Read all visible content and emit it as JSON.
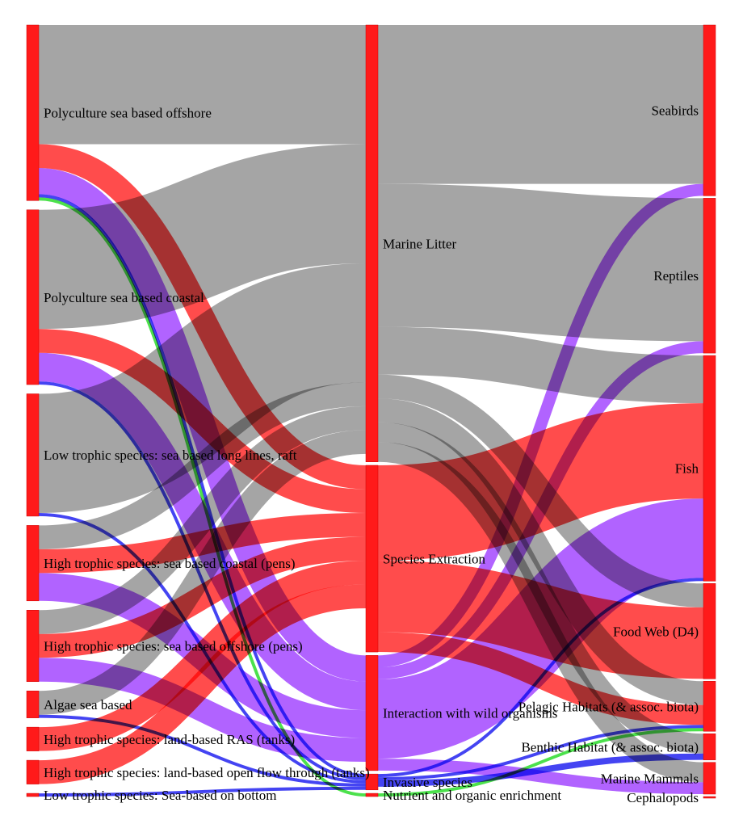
{
  "colors": {
    "node": "#ff1a1a",
    "node_stroke": "#cc0000",
    "marine_litter": "#999999",
    "species_extraction": "#ff3333",
    "interaction": "#a64dff",
    "invasive": "#2a2af0",
    "nutrient": "#33dd33"
  },
  "chart_data": {
    "type": "sankey",
    "columns": [
      [
        "Polyculture sea based offshore",
        "Polyculture sea based coastal",
        "Low trophic species: sea based long lines, raft",
        "High trophic species: sea based coastal (pens)",
        "High trophic species: sea based offshore (pens)",
        "Algae sea based",
        "High trophic species: land-based RAS (tanks)",
        "High trophic species: land-based open flow through (tanks)",
        "Low trophic species: Sea-based on bottom"
      ],
      [
        "Marine Litter",
        "Species Extraction",
        "Interaction with wild organisms",
        "Invasive species",
        "Nutrient and organic enrichment"
      ],
      [
        "Seabirds",
        "Reptiles",
        "Fish",
        "Food Web (D4)",
        "Pelagic Habitats (& assoc. biota)",
        "Benthic Habitat (& assoc. biota)",
        "Marine Mammals",
        "Cephalopods"
      ]
    ],
    "links": [
      {
        "source": "Polyculture sea based offshore",
        "target": "Marine Litter",
        "value": 15,
        "type": "Marine Litter"
      },
      {
        "source": "Polyculture sea based offshore",
        "target": "Species Extraction",
        "value": 3,
        "type": "Species Extraction"
      },
      {
        "source": "Polyculture sea based offshore",
        "target": "Interaction with wild organisms",
        "value": 3.3,
        "type": "Interaction with wild organisms"
      },
      {
        "source": "Polyculture sea based offshore",
        "target": "Invasive species",
        "value": 0.4,
        "type": "Invasive species"
      },
      {
        "source": "Polyculture sea based offshore",
        "target": "Nutrient and organic enrichment",
        "value": 0.4,
        "type": "Nutrient and organic enrichment"
      },
      {
        "source": "Polyculture sea based coastal",
        "target": "Marine Litter",
        "value": 15,
        "type": "Marine Litter"
      },
      {
        "source": "Polyculture sea based coastal",
        "target": "Species Extraction",
        "value": 3,
        "type": "Species Extraction"
      },
      {
        "source": "Polyculture sea based coastal",
        "target": "Interaction with wild organisms",
        "value": 3.6,
        "type": "Interaction with wild organisms"
      },
      {
        "source": "Polyculture sea based coastal",
        "target": "Invasive species",
        "value": 0.4,
        "type": "Invasive species"
      },
      {
        "source": "Low trophic species: sea based long lines, raft",
        "target": "Marine Litter",
        "value": 15,
        "type": "Marine Litter"
      },
      {
        "source": "Low trophic species: sea based long lines, raft",
        "target": "Invasive species",
        "value": 0.4,
        "type": "Invasive species"
      },
      {
        "source": "High trophic species: sea based coastal (pens)",
        "target": "Marine Litter",
        "value": 3,
        "type": "Marine Litter"
      },
      {
        "source": "High trophic species: sea based coastal (pens)",
        "target": "Species Extraction",
        "value": 3,
        "type": "Species Extraction"
      },
      {
        "source": "High trophic species: sea based coastal (pens)",
        "target": "Interaction with wild organisms",
        "value": 3.5,
        "type": "Interaction with wild organisms"
      },
      {
        "source": "High trophic species: sea based offshore (pens)",
        "target": "Marine Litter",
        "value": 3,
        "type": "Marine Litter"
      },
      {
        "source": "High trophic species: sea based offshore (pens)",
        "target": "Species Extraction",
        "value": 3,
        "type": "Species Extraction"
      },
      {
        "source": "High trophic species: sea based offshore (pens)",
        "target": "Interaction with wild organisms",
        "value": 3,
        "type": "Interaction with wild organisms"
      },
      {
        "source": "Algae sea based",
        "target": "Marine Litter",
        "value": 3,
        "type": "Marine Litter"
      },
      {
        "source": "Algae sea based",
        "target": "Invasive species",
        "value": 0.4,
        "type": "Invasive species"
      },
      {
        "source": "High trophic species: land-based RAS (tanks)",
        "target": "Species Extraction",
        "value": 3,
        "type": "Species Extraction"
      },
      {
        "source": "High trophic species: land-based open flow through (tanks)",
        "target": "Species Extraction",
        "value": 3,
        "type": "Species Extraction"
      },
      {
        "source": "Low trophic species: Sea-based on bottom",
        "target": "Invasive species",
        "value": 0.4,
        "type": "Invasive species"
      },
      {
        "source": "Marine Litter",
        "target": "Seabirds",
        "value": 20,
        "type": "Marine Litter"
      },
      {
        "source": "Marine Litter",
        "target": "Reptiles",
        "value": 18,
        "type": "Marine Litter"
      },
      {
        "source": "Marine Litter",
        "target": "Fish",
        "value": 6,
        "type": "Marine Litter"
      },
      {
        "source": "Marine Litter",
        "target": "Food Web (D4)",
        "value": 3,
        "type": "Marine Litter"
      },
      {
        "source": "Marine Litter",
        "target": "Pelagic Habitats (& assoc. biota)",
        "value": 3,
        "type": "Marine Litter"
      },
      {
        "source": "Marine Litter",
        "target": "Benthic Habitat (& assoc. biota)",
        "value": 2.5,
        "type": "Marine Litter"
      },
      {
        "source": "Marine Litter",
        "target": "Marine Mammals",
        "value": 2.5,
        "type": "Marine Litter"
      },
      {
        "source": "Species Extraction",
        "target": "Fish",
        "value": 12,
        "type": "Species Extraction"
      },
      {
        "source": "Species Extraction",
        "target": "Food Web (D4)",
        "value": 9,
        "type": "Species Extraction"
      },
      {
        "source": "Species Extraction",
        "target": "Pelagic Habitats (& assoc. biota)",
        "value": 2.5,
        "type": "Species Extraction"
      },
      {
        "source": "Interaction with wild organisms",
        "target": "Seabirds",
        "value": 1.5,
        "type": "Interaction with wild organisms"
      },
      {
        "source": "Interaction with wild organisms",
        "target": "Reptiles",
        "value": 1.5,
        "type": "Interaction with wild organisms"
      },
      {
        "source": "Interaction with wild organisms",
        "target": "Fish",
        "value": 10,
        "type": "Interaction with wild organisms"
      },
      {
        "source": "Interaction with wild organisms",
        "target": "Marine Mammals",
        "value": 1.5,
        "type": "Interaction with wild organisms"
      },
      {
        "source": "Invasive species",
        "target": "Fish",
        "value": 0.4,
        "type": "Invasive species"
      },
      {
        "source": "Invasive species",
        "target": "Pelagic Habitats (& assoc. biota)",
        "value": 0.4,
        "type": "Invasive species"
      },
      {
        "source": "Invasive species",
        "target": "Benthic Habitat (& assoc. biota)",
        "value": 0.8,
        "type": "Invasive species"
      },
      {
        "source": "Nutrient and organic enrichment",
        "target": "Pelagic Habitats (& assoc. biota)",
        "value": 0.4,
        "type": "Nutrient and organic enrichment"
      }
    ]
  }
}
